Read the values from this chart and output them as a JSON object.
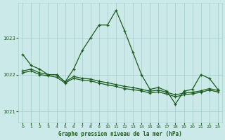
{
  "title": "Graphe pression niveau de la mer (hPa)",
  "bg_color": "#cce9e9",
  "grid_color": "#aad0d0",
  "line_color": "#1a5c1a",
  "x_values": [
    0,
    1,
    2,
    3,
    4,
    5,
    6,
    7,
    8,
    9,
    10,
    11,
    12,
    13,
    14,
    15,
    16,
    17,
    18,
    19,
    20,
    21,
    22,
    23
  ],
  "s1": [
    1022.55,
    1022.25,
    1022.15,
    1022.0,
    1022.0,
    1021.8,
    1022.15,
    1022.65,
    1023.0,
    1023.35,
    1023.35,
    1023.75,
    1023.2,
    1022.6,
    1022.0,
    1021.6,
    1021.65,
    1021.55,
    1021.2,
    1021.55,
    1021.6,
    1022.0,
    1021.9,
    1021.6
  ],
  "s2": [
    1022.1,
    1022.15,
    1022.05,
    1022.0,
    1022.0,
    1021.8,
    1021.95,
    1021.9,
    1021.88,
    1021.82,
    1021.78,
    1021.73,
    1021.68,
    1021.65,
    1021.6,
    1021.55,
    1021.58,
    1021.52,
    1021.45,
    1021.5,
    1021.52,
    1021.56,
    1021.62,
    1021.57
  ],
  "s3": [
    1022.05,
    1022.1,
    1022.0,
    1021.97,
    1021.93,
    1021.77,
    1021.9,
    1021.85,
    1021.83,
    1021.77,
    1021.72,
    1021.68,
    1021.62,
    1021.59,
    1021.56,
    1021.5,
    1021.53,
    1021.47,
    1021.4,
    1021.45,
    1021.48,
    1021.52,
    1021.58,
    1021.53
  ],
  "ylim": [
    1020.7,
    1023.95
  ],
  "yticks": [
    1021,
    1022,
    1023
  ],
  "xticks": [
    0,
    1,
    2,
    3,
    4,
    5,
    6,
    7,
    8,
    9,
    10,
    11,
    12,
    13,
    14,
    15,
    16,
    17,
    18,
    19,
    20,
    21,
    22,
    23
  ]
}
